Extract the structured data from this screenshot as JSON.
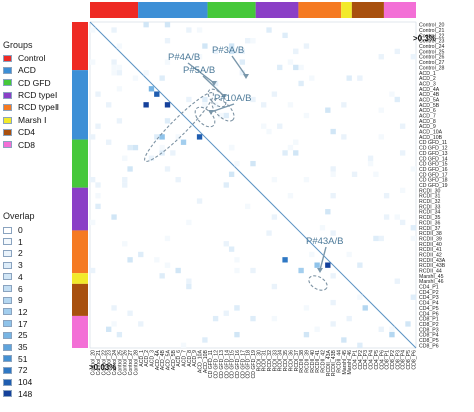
{
  "legend": {
    "groups_title": "Groups",
    "groups": [
      {
        "label": "Control",
        "color": "#ee2a24"
      },
      {
        "label": "ACD",
        "color": "#3d8fd6"
      },
      {
        "label": "CD GFD",
        "color": "#45c83a"
      },
      {
        "label": "RCD typeⅠ",
        "color": "#8a3fc6"
      },
      {
        "label": "RCD typeⅡ",
        "color": "#f57a22"
      },
      {
        "label": "Marsh Ⅰ",
        "color": "#f2ea2a"
      },
      {
        "label": "CD4",
        "color": "#a8500e"
      },
      {
        "label": "CD8",
        "color": "#f36fd6"
      }
    ],
    "overlap_title": "Overlap",
    "overlap": [
      {
        "label": "0",
        "color": "#ffffff"
      },
      {
        "label": "1",
        "color": "#f4f9fd"
      },
      {
        "label": "2",
        "color": "#eaf3fb"
      },
      {
        "label": "3",
        "color": "#deedf9"
      },
      {
        "label": "4",
        "color": "#d1e6f6"
      },
      {
        "label": "6",
        "color": "#c3def3"
      },
      {
        "label": "9",
        "color": "#b4d7f1"
      },
      {
        "label": "12",
        "color": "#a3ceee"
      },
      {
        "label": "17",
        "color": "#8fc3ea"
      },
      {
        "label": "25",
        "color": "#78b5e4"
      },
      {
        "label": "35",
        "color": "#5fa4dc"
      },
      {
        "label": "51",
        "color": "#4590d2"
      },
      {
        "label": "72",
        "color": "#2f78c4"
      },
      {
        "label": "104",
        "color": "#1f5db0"
      },
      {
        "label": "148",
        "color": "#15419b"
      }
    ]
  },
  "thresholds": {
    "upper": ">0.3%",
    "lower": ">0.03%"
  },
  "samples": [
    "Control_20",
    "Control_21",
    "Control_22",
    "Control_23",
    "Control_24",
    "Control_25",
    "Control_26",
    "Control_27",
    "Control_28",
    "ACD_1",
    "ACD_2",
    "ACD_3",
    "ACD_4A",
    "ACD_4B",
    "ACD_5A",
    "ACD_5B",
    "ACD_6",
    "ACD_7",
    "ACD_8",
    "ACD_9",
    "ACD_10A",
    "ACD_10B",
    "CD GFD_11",
    "CD GFD_12",
    "CD GFD_13",
    "CD GFD_14",
    "CD GFD_15",
    "CD GFD_16",
    "CD GFD_17",
    "CD GFD_18",
    "CD GFD_19",
    "RCDI_30",
    "RCDI_31",
    "RCDI_32",
    "RCDI_33",
    "RCDI_34",
    "RCDI_35",
    "RCDI_36",
    "RCDI_37",
    "RCDII_38",
    "RCDII_39",
    "RCDII_40",
    "RCDII_41",
    "RCDII_42",
    "RCDII_43A",
    "RCDII_43B",
    "RCDII_44",
    "MarshI_45",
    "MarshI_46",
    "CD4_P1",
    "CD4_P2",
    "CD4_P3",
    "CD4_P4",
    "CD4_P5",
    "CD4_P6",
    "CD8_P1",
    "CD8_P2",
    "CD8_P3",
    "CD8_P4",
    "CD8_P5",
    "CD8_P6"
  ],
  "group_spans": [
    {
      "group": "Control",
      "count": 9
    },
    {
      "group": "ACD",
      "count": 13
    },
    {
      "group": "CD GFD",
      "count": 9
    },
    {
      "group": "RCD typeⅠ",
      "count": 8
    },
    {
      "group": "RCD typeⅡ",
      "count": 8
    },
    {
      "group": "Marsh Ⅰ",
      "count": 2
    },
    {
      "group": "CD4",
      "count": 6
    },
    {
      "group": "CD8",
      "count": 6
    }
  ],
  "annotations": [
    {
      "label": "P#4A/B",
      "a": "ACD_4A",
      "b": "ACD_4B"
    },
    {
      "label": "P#5A/B",
      "a": "ACD_5A",
      "b": "ACD_5B"
    },
    {
      "label": "P#3A/B",
      "a": "ACD_3",
      "b": "ACD_4A"
    },
    {
      "label": "P#10A/B",
      "a": "ACD_10A",
      "b": "ACD_10B"
    },
    {
      "label": "P#43A/B",
      "a": "RCDII_43A",
      "b": "RCDII_43B"
    }
  ],
  "highlight_pairs": [
    {
      "a": "ACD_4A",
      "b": "ACD_4B",
      "overlap": 104
    },
    {
      "a": "ACD_5A",
      "b": "ACD_5B",
      "overlap": 148
    },
    {
      "a": "ACD_3",
      "b": "ACD_4A",
      "overlap": 25
    },
    {
      "a": "ACD_2",
      "b": "ACD_5B",
      "overlap": 148
    },
    {
      "a": "ACD_10A",
      "b": "ACD_10B",
      "overlap": 104
    },
    {
      "a": "RCDII_43A",
      "b": "RCDII_43B",
      "overlap": 148
    },
    {
      "a": "RCDI_35",
      "b": "RCDII_43A",
      "overlap": 72
    },
    {
      "a": "ACD_4B",
      "b": "ACD_10B",
      "overlap": 17
    },
    {
      "a": "ACD_7",
      "b": "CD GFD_11",
      "overlap": 12
    },
    {
      "a": "RCDII_41",
      "b": "RCDII_43B",
      "overlap": 17
    },
    {
      "a": "RCDII_38",
      "b": "RCDII_44",
      "overlap": 12
    },
    {
      "a": "CD4_P3",
      "b": "CD4_P5",
      "overlap": 9
    },
    {
      "a": "CD8_P2",
      "b": "CD8_P4",
      "overlap": 9
    }
  ]
}
